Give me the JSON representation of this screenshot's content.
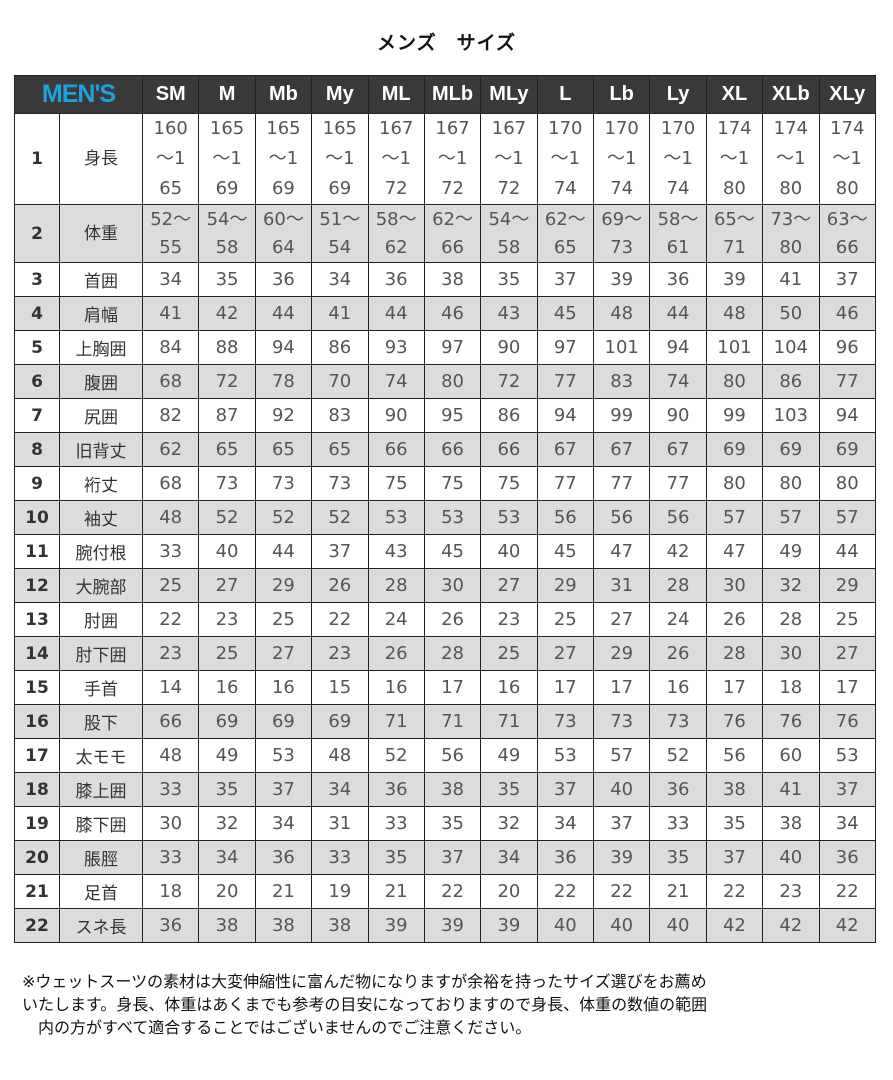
{
  "title": "メンズ　サイズ",
  "table": {
    "brand": "MEN'S",
    "sizes": [
      "SM",
      "M",
      "Mb",
      "My",
      "ML",
      "MLb",
      "MLy",
      "L",
      "Lb",
      "Ly",
      "XL",
      "XLb",
      "XLy"
    ],
    "rows": [
      {
        "no": "1",
        "label": "身長",
        "values": [
          "160～165",
          "165～169",
          "165～169",
          "165～169",
          "167～172",
          "167～172",
          "167～172",
          "170～174",
          "170～174",
          "170～174",
          "174～180",
          "174～180",
          "174～180"
        ]
      },
      {
        "no": "2",
        "label": "体重",
        "values": [
          "52～55",
          "54～58",
          "60～64",
          "51～54",
          "58～62",
          "62～66",
          "54～58",
          "62～65",
          "69～73",
          "58～61",
          "65～71",
          "73～80",
          "63～66"
        ]
      },
      {
        "no": "3",
        "label": "首囲",
        "values": [
          "34",
          "35",
          "36",
          "34",
          "36",
          "38",
          "35",
          "37",
          "39",
          "36",
          "39",
          "41",
          "37"
        ]
      },
      {
        "no": "4",
        "label": "肩幅",
        "values": [
          "41",
          "42",
          "44",
          "41",
          "44",
          "46",
          "43",
          "45",
          "48",
          "44",
          "48",
          "50",
          "46"
        ]
      },
      {
        "no": "5",
        "label": "上胸囲",
        "values": [
          "84",
          "88",
          "94",
          "86",
          "93",
          "97",
          "90",
          "97",
          "101",
          "94",
          "101",
          "104",
          "96"
        ]
      },
      {
        "no": "6",
        "label": "腹囲",
        "values": [
          "68",
          "72",
          "78",
          "70",
          "74",
          "80",
          "72",
          "77",
          "83",
          "74",
          "80",
          "86",
          "77"
        ]
      },
      {
        "no": "7",
        "label": "尻囲",
        "values": [
          "82",
          "87",
          "92",
          "83",
          "90",
          "95",
          "86",
          "94",
          "99",
          "90",
          "99",
          "103",
          "94"
        ]
      },
      {
        "no": "8",
        "label": "旧背丈",
        "values": [
          "62",
          "65",
          "65",
          "65",
          "66",
          "66",
          "66",
          "67",
          "67",
          "67",
          "69",
          "69",
          "69"
        ]
      },
      {
        "no": "9",
        "label": "裄丈",
        "values": [
          "68",
          "73",
          "73",
          "73",
          "75",
          "75",
          "75",
          "77",
          "77",
          "77",
          "80",
          "80",
          "80"
        ]
      },
      {
        "no": "10",
        "label": "袖丈",
        "values": [
          "48",
          "52",
          "52",
          "52",
          "53",
          "53",
          "53",
          "56",
          "56",
          "56",
          "57",
          "57",
          "57"
        ]
      },
      {
        "no": "11",
        "label": "腕付根",
        "values": [
          "33",
          "40",
          "44",
          "37",
          "43",
          "45",
          "40",
          "45",
          "47",
          "42",
          "47",
          "49",
          "44"
        ]
      },
      {
        "no": "12",
        "label": "大腕部",
        "values": [
          "25",
          "27",
          "29",
          "26",
          "28",
          "30",
          "27",
          "29",
          "31",
          "28",
          "30",
          "32",
          "29"
        ]
      },
      {
        "no": "13",
        "label": "肘囲",
        "values": [
          "22",
          "23",
          "25",
          "22",
          "24",
          "26",
          "23",
          "25",
          "27",
          "24",
          "26",
          "28",
          "25"
        ]
      },
      {
        "no": "14",
        "label": "肘下囲",
        "values": [
          "23",
          "25",
          "27",
          "23",
          "26",
          "28",
          "25",
          "27",
          "29",
          "26",
          "28",
          "30",
          "27"
        ]
      },
      {
        "no": "15",
        "label": "手首",
        "values": [
          "14",
          "16",
          "16",
          "15",
          "16",
          "17",
          "16",
          "17",
          "17",
          "16",
          "17",
          "18",
          "17"
        ]
      },
      {
        "no": "16",
        "label": "股下",
        "values": [
          "66",
          "69",
          "69",
          "69",
          "71",
          "71",
          "71",
          "73",
          "73",
          "73",
          "76",
          "76",
          "76"
        ]
      },
      {
        "no": "17",
        "label": "太モモ",
        "values": [
          "48",
          "49",
          "53",
          "48",
          "52",
          "56",
          "49",
          "53",
          "57",
          "52",
          "56",
          "60",
          "53"
        ]
      },
      {
        "no": "18",
        "label": "膝上囲",
        "values": [
          "33",
          "35",
          "37",
          "34",
          "36",
          "38",
          "35",
          "37",
          "40",
          "36",
          "38",
          "41",
          "37"
        ]
      },
      {
        "no": "19",
        "label": "膝下囲",
        "values": [
          "30",
          "32",
          "34",
          "31",
          "33",
          "35",
          "32",
          "34",
          "37",
          "33",
          "35",
          "38",
          "34"
        ]
      },
      {
        "no": "20",
        "label": "脹脛",
        "values": [
          "33",
          "34",
          "36",
          "33",
          "35",
          "37",
          "34",
          "36",
          "39",
          "35",
          "37",
          "40",
          "36"
        ]
      },
      {
        "no": "21",
        "label": "足首",
        "values": [
          "18",
          "20",
          "21",
          "19",
          "21",
          "22",
          "20",
          "22",
          "22",
          "21",
          "22",
          "23",
          "22"
        ]
      },
      {
        "no": "22",
        "label": "スネ長",
        "values": [
          "36",
          "38",
          "38",
          "38",
          "39",
          "39",
          "39",
          "40",
          "40",
          "40",
          "42",
          "42",
          "42"
        ]
      }
    ]
  },
  "note": {
    "line1": "※ウェットスーツの素材は大変伸縮性に富んだ物になりますが余裕を持ったサイズ選びをお薦め",
    "line2": "いたします。身長、体重はあくまでも参考の目安になっておりますので身長、体重の数値の範囲",
    "line3": "内の方がすべて適合することではございませんのでご注意ください。"
  },
  "colors": {
    "header_bg": "#3a3a3a",
    "brand": "#1fa0e0",
    "stripe": "#dcdcdc"
  }
}
